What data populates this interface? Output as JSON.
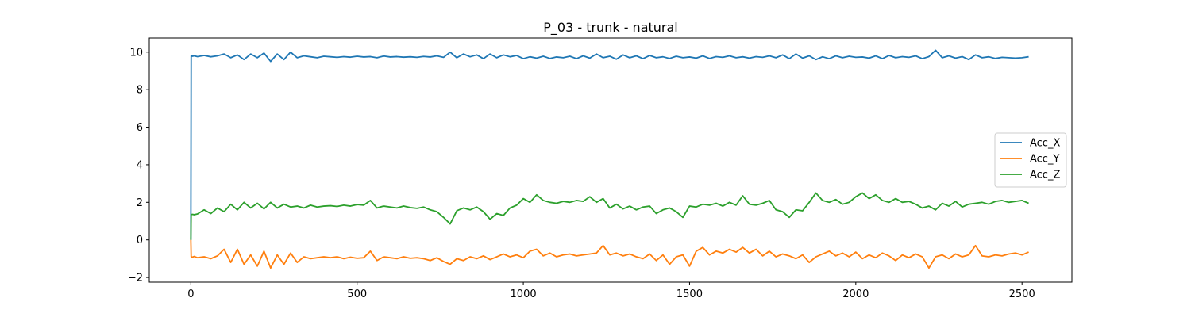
{
  "chart_data": {
    "type": "line",
    "title": "P_03 - trunk - natural",
    "xlabel": "",
    "ylabel": "",
    "xlim": [
      -125,
      2650
    ],
    "ylim": [
      -2.25,
      10.75
    ],
    "xticks": [
      0,
      500,
      1000,
      1500,
      2000,
      2500
    ],
    "xtick_labels": [
      "0",
      "500",
      "1000",
      "1500",
      "2000",
      "2500"
    ],
    "yticks": [
      -2,
      0,
      2,
      4,
      6,
      8,
      10
    ],
    "ytick_labels": [
      "−2",
      "0",
      "2",
      "4",
      "6",
      "8",
      "10"
    ],
    "grid": false,
    "legend": {
      "position": "center-right"
    },
    "x": [
      0,
      1,
      5,
      10,
      20,
      40,
      60,
      80,
      100,
      120,
      140,
      160,
      180,
      200,
      220,
      240,
      260,
      280,
      300,
      320,
      340,
      360,
      380,
      400,
      420,
      440,
      460,
      480,
      500,
      520,
      540,
      560,
      580,
      600,
      620,
      640,
      660,
      680,
      700,
      720,
      740,
      760,
      780,
      800,
      820,
      840,
      860,
      880,
      900,
      920,
      940,
      960,
      980,
      1000,
      1020,
      1040,
      1060,
      1080,
      1100,
      1120,
      1140,
      1160,
      1180,
      1200,
      1220,
      1240,
      1260,
      1280,
      1300,
      1320,
      1340,
      1360,
      1380,
      1400,
      1420,
      1440,
      1460,
      1480,
      1500,
      1520,
      1540,
      1560,
      1580,
      1600,
      1620,
      1640,
      1660,
      1680,
      1700,
      1720,
      1740,
      1760,
      1780,
      1800,
      1820,
      1840,
      1860,
      1880,
      1900,
      1920,
      1940,
      1960,
      1980,
      2000,
      2020,
      2040,
      2060,
      2080,
      2100,
      2120,
      2140,
      2160,
      2180,
      2200,
      2220,
      2240,
      2260,
      2280,
      2300,
      2320,
      2340,
      2360,
      2380,
      2400,
      2420,
      2440,
      2460,
      2480,
      2500,
      2520
    ],
    "series": [
      {
        "name": "Acc_X",
        "color": "#1f77b4",
        "values": [
          0.0,
          9.8,
          9.78,
          9.8,
          9.76,
          9.82,
          9.75,
          9.8,
          9.9,
          9.7,
          9.85,
          9.6,
          9.9,
          9.7,
          9.95,
          9.5,
          9.9,
          9.6,
          10.0,
          9.7,
          9.8,
          9.75,
          9.7,
          9.78,
          9.75,
          9.72,
          9.76,
          9.73,
          9.78,
          9.74,
          9.76,
          9.7,
          9.79,
          9.74,
          9.76,
          9.73,
          9.75,
          9.72,
          9.77,
          9.74,
          9.8,
          9.72,
          10.0,
          9.7,
          9.9,
          9.75,
          9.85,
          9.65,
          9.9,
          9.7,
          9.85,
          9.75,
          9.82,
          9.65,
          9.75,
          9.68,
          9.78,
          9.66,
          9.74,
          9.7,
          9.78,
          9.65,
          9.8,
          9.68,
          9.9,
          9.7,
          9.78,
          9.62,
          9.85,
          9.7,
          9.8,
          9.65,
          9.82,
          9.7,
          9.75,
          9.66,
          9.78,
          9.7,
          9.74,
          9.68,
          9.8,
          9.66,
          9.76,
          9.72,
          9.8,
          9.7,
          9.75,
          9.68,
          9.76,
          9.72,
          9.8,
          9.7,
          9.85,
          9.65,
          9.9,
          9.68,
          9.8,
          9.6,
          9.75,
          9.65,
          9.8,
          9.7,
          9.78,
          9.72,
          9.74,
          9.68,
          9.8,
          9.65,
          9.82,
          9.7,
          9.76,
          9.72,
          9.8,
          9.65,
          9.76,
          10.1,
          9.7,
          9.8,
          9.68,
          9.76,
          9.6,
          9.85,
          9.7,
          9.75,
          9.66,
          9.72,
          9.7,
          9.68,
          9.7,
          9.75
        ]
      },
      {
        "name": "Acc_Y",
        "color": "#ff7f0e",
        "values": [
          0.0,
          -0.9,
          -0.92,
          -0.88,
          -0.95,
          -0.9,
          -1.0,
          -0.85,
          -0.5,
          -1.2,
          -0.5,
          -1.3,
          -0.8,
          -1.4,
          -0.6,
          -1.5,
          -0.8,
          -1.3,
          -0.7,
          -1.2,
          -0.9,
          -1.0,
          -0.95,
          -0.9,
          -0.95,
          -0.9,
          -1.0,
          -0.92,
          -0.98,
          -0.95,
          -0.6,
          -1.1,
          -0.9,
          -0.95,
          -1.0,
          -0.9,
          -0.98,
          -0.95,
          -1.0,
          -1.1,
          -0.95,
          -1.15,
          -1.3,
          -1.0,
          -1.1,
          -0.9,
          -1.0,
          -0.85,
          -1.05,
          -0.9,
          -0.75,
          -0.9,
          -0.8,
          -0.95,
          -0.6,
          -0.5,
          -0.85,
          -0.7,
          -0.9,
          -0.8,
          -0.75,
          -0.85,
          -0.8,
          -0.75,
          -0.7,
          -0.3,
          -0.8,
          -0.7,
          -0.85,
          -0.75,
          -0.9,
          -1.0,
          -0.75,
          -1.1,
          -0.8,
          -1.3,
          -0.9,
          -0.8,
          -1.4,
          -0.6,
          -0.4,
          -0.8,
          -0.6,
          -0.7,
          -0.5,
          -0.65,
          -0.4,
          -0.7,
          -0.5,
          -0.85,
          -0.6,
          -0.9,
          -0.75,
          -0.85,
          -1.0,
          -0.8,
          -1.2,
          -0.9,
          -0.75,
          -0.6,
          -0.85,
          -0.7,
          -0.9,
          -0.65,
          -1.0,
          -0.8,
          -0.95,
          -0.7,
          -0.85,
          -1.1,
          -0.8,
          -0.95,
          -0.75,
          -0.9,
          -1.5,
          -0.9,
          -0.8,
          -1.0,
          -0.75,
          -0.9,
          -0.8,
          -0.3,
          -0.85,
          -0.9,
          -0.8,
          -0.85,
          -0.75,
          -0.7,
          -0.8,
          -0.65
        ]
      },
      {
        "name": "Acc_Z",
        "color": "#2ca02c",
        "values": [
          0.0,
          1.35,
          1.36,
          1.34,
          1.38,
          1.6,
          1.4,
          1.7,
          1.5,
          1.9,
          1.6,
          2.0,
          1.7,
          1.95,
          1.65,
          2.0,
          1.7,
          1.9,
          1.75,
          1.8,
          1.7,
          1.85,
          1.75,
          1.8,
          1.82,
          1.78,
          1.85,
          1.8,
          1.88,
          1.85,
          2.1,
          1.7,
          1.8,
          1.75,
          1.7,
          1.8,
          1.72,
          1.68,
          1.75,
          1.6,
          1.5,
          1.2,
          0.85,
          1.55,
          1.7,
          1.6,
          1.75,
          1.5,
          1.1,
          1.4,
          1.3,
          1.7,
          1.85,
          2.2,
          2.0,
          2.4,
          2.1,
          2.0,
          1.95,
          2.05,
          2.0,
          2.1,
          2.05,
          2.3,
          2.0,
          2.2,
          1.7,
          1.9,
          1.65,
          1.8,
          1.6,
          1.75,
          1.8,
          1.4,
          1.6,
          1.7,
          1.5,
          1.2,
          1.8,
          1.75,
          1.9,
          1.85,
          1.95,
          1.8,
          2.0,
          1.85,
          2.35,
          1.9,
          1.85,
          1.95,
          2.1,
          1.6,
          1.5,
          1.2,
          1.6,
          1.55,
          2.0,
          2.5,
          2.1,
          2.0,
          2.15,
          1.9,
          2.0,
          2.3,
          2.5,
          2.2,
          2.4,
          2.1,
          2.0,
          2.2,
          2.0,
          2.05,
          1.9,
          1.7,
          1.8,
          1.6,
          1.95,
          1.8,
          2.05,
          1.75,
          1.9,
          1.95,
          2.0,
          1.9,
          2.05,
          2.1,
          2.0,
          2.05,
          2.1,
          1.95
        ]
      }
    ]
  }
}
